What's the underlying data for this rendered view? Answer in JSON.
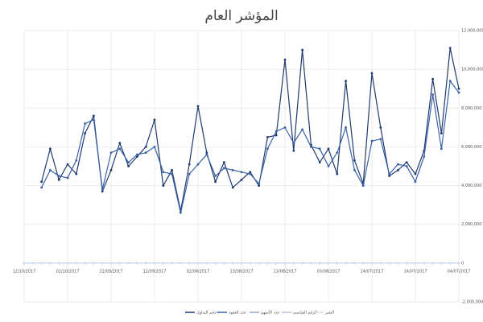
{
  "chart_data": {
    "type": "line",
    "title": "المؤشر العام",
    "categories": [
      "12/10/2017",
      null,
      null,
      null,
      null,
      "02/10/2017",
      null,
      null,
      null,
      null,
      "22/09/2017",
      null,
      null,
      null,
      null,
      "12/09/2017",
      null,
      null,
      null,
      null,
      "02/08/2017",
      null,
      null,
      null,
      null,
      "23/08/2017",
      null,
      null,
      null,
      null,
      "13/08/2017",
      null,
      null,
      null,
      null,
      "03/08/2017",
      null,
      null,
      null,
      null,
      "24/07/2017",
      null,
      null,
      null,
      null,
      "14/07/2017",
      null,
      null,
      null,
      null,
      "04/07/2017"
    ],
    "series": [
      {
        "name": "حجم التداول",
        "color": "#1f3a6e",
        "values": [
          null,
          null,
          4200000,
          5900000,
          4300000,
          5100000,
          4600000,
          6700000,
          7600000,
          3700000,
          4800000,
          6200000,
          5000000,
          5500000,
          6000000,
          7400000,
          4000000,
          4800000,
          2700000,
          5100000,
          8100000,
          5700000,
          4200000,
          5200000,
          3900000,
          4300000,
          4700000,
          4000000,
          6500000,
          6600000,
          10500000,
          5800000,
          11000000,
          6100000,
          5200000,
          5900000,
          4600000,
          9400000,
          5300000,
          4100000,
          9800000,
          7000000,
          4500000,
          4800000,
          5200000,
          4600000,
          5800000,
          9500000,
          6700000,
          11100000,
          9000000
        ]
      },
      {
        "name": "عدد العقود",
        "color": "#3a62a8",
        "values": [
          null,
          null,
          3900000,
          4800000,
          4500000,
          4400000,
          5300000,
          7200000,
          7400000,
          3800000,
          5700000,
          5900000,
          5200000,
          5600000,
          5700000,
          6000000,
          4700000,
          4600000,
          2600000,
          4600000,
          5100000,
          5600000,
          4500000,
          4900000,
          4800000,
          4700000,
          4600000,
          4100000,
          5900000,
          6800000,
          7000000,
          6200000,
          6900000,
          6000000,
          5900000,
          5000000,
          5700000,
          7000000,
          4800000,
          4000000,
          6300000,
          6400000,
          4600000,
          5100000,
          5000000,
          4200000,
          5500000,
          8700000,
          5900000,
          9400000,
          8800000
        ]
      },
      {
        "name": "عدد الأسهم",
        "color": "#8fa8d4",
        "values": [
          0,
          0,
          0,
          0,
          0,
          0,
          0,
          0,
          0,
          0,
          0,
          0,
          0,
          0,
          0,
          0,
          0,
          0,
          0,
          0,
          0,
          0,
          0,
          0,
          0,
          0,
          0,
          0,
          0,
          0,
          0,
          0,
          0,
          0,
          0,
          0,
          0,
          0,
          0,
          0,
          0,
          0,
          0,
          0,
          0,
          0,
          0,
          0,
          0,
          0,
          0
        ]
      },
      {
        "name": "الرقم القياسي",
        "color": "#b7c6e4",
        "values": [
          0,
          0,
          0,
          0,
          0,
          0,
          0,
          0,
          0,
          0,
          0,
          0,
          0,
          0,
          0,
          0,
          0,
          0,
          0,
          0,
          0,
          0,
          0,
          0,
          0,
          0,
          0,
          0,
          0,
          0,
          0,
          0,
          0,
          0,
          0,
          0,
          0,
          0,
          0,
          0,
          0,
          0,
          0,
          0,
          0,
          0,
          0,
          0,
          0,
          0,
          0
        ]
      },
      {
        "name": "التغير",
        "color": "#d3dcef",
        "values": [
          0,
          0,
          0,
          0,
          0,
          0,
          0,
          0,
          0,
          0,
          0,
          0,
          0,
          0,
          0,
          0,
          0,
          0,
          0,
          0,
          0,
          0,
          0,
          0,
          0,
          0,
          0,
          0,
          0,
          0,
          0,
          0,
          0,
          0,
          0,
          0,
          0,
          0,
          0,
          0,
          0,
          0,
          0,
          0,
          0,
          0,
          0,
          0,
          0,
          0,
          0
        ]
      }
    ],
    "ylim": [
      -2000000,
      12000000
    ],
    "yticks": [
      {
        "value": -2000000,
        "label": "-2,000,000"
      },
      0,
      {
        "value": 2000000,
        "label": "2,000,000"
      },
      {
        "value": 4000000,
        "label": "4,000,000"
      },
      {
        "value": 6000000,
        "label": "6,000,000"
      },
      {
        "value": 8000000,
        "label": "8,000,000"
      },
      {
        "value": 10000000,
        "label": "10,000,000"
      },
      {
        "value": 12000000,
        "label": "12,000,000"
      }
    ],
    "grid": true
  }
}
